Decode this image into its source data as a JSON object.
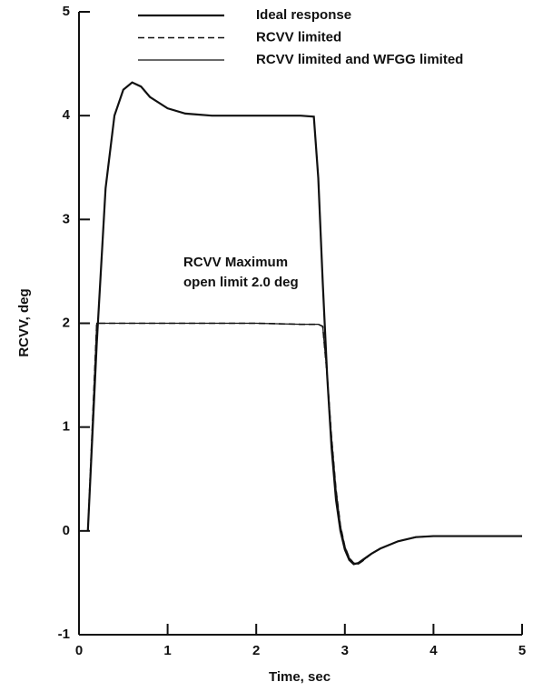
{
  "chart_data": {
    "type": "line",
    "xlabel": "Time, sec",
    "ylabel": "RCVV, deg",
    "annotation": [
      "RCVV Maximum",
      "open limit 2.0 deg"
    ],
    "x": [
      0.1,
      0.2,
      0.3,
      0.4,
      0.5,
      0.6,
      0.7,
      0.8,
      1.0,
      1.2,
      1.5,
      2.0,
      2.5,
      2.65,
      2.7,
      2.75,
      2.8,
      2.85,
      2.9,
      2.95,
      3.0,
      3.05,
      3.1,
      3.15,
      3.2,
      3.3,
      3.4,
      3.6,
      3.8,
      4.0,
      4.5,
      5.0
    ],
    "series": [
      {
        "name": "Ideal response",
        "color": "#111111",
        "linestyle": "solid",
        "linewidth": 2.2,
        "values": [
          0,
          1.8,
          3.3,
          4.0,
          4.25,
          4.32,
          4.28,
          4.18,
          4.07,
          4.02,
          4.0,
          4.0,
          4.0,
          3.99,
          3.4,
          2.4,
          1.5,
          0.8,
          0.3,
          0.0,
          -0.18,
          -0.28,
          -0.32,
          -0.31,
          -0.28,
          -0.22,
          -0.17,
          -0.1,
          -0.06,
          -0.05,
          -0.05,
          -0.05
        ]
      },
      {
        "name": "RCVV limited",
        "color": "#111111",
        "linestyle": "dashed",
        "linewidth": 1.6,
        "values": [
          0,
          2.0,
          2.0,
          2.0,
          2.0,
          2.0,
          2.0,
          2.0,
          2.0,
          2.0,
          2.0,
          2.0,
          1.99,
          1.99,
          1.99,
          1.97,
          1.5,
          0.9,
          0.4,
          0.05,
          -0.15,
          -0.26,
          -0.31,
          -0.32,
          -0.29,
          -0.22,
          -0.17,
          -0.1,
          -0.06,
          -0.05,
          -0.05,
          -0.05
        ]
      },
      {
        "name": "RCVV limited and WFGG limited",
        "color": "#111111",
        "linestyle": "solid",
        "linewidth": 1.2,
        "values": [
          0,
          2.0,
          2.0,
          2.0,
          2.0,
          2.0,
          2.0,
          2.0,
          2.0,
          2.0,
          2.0,
          2.0,
          1.99,
          1.99,
          1.99,
          1.97,
          1.5,
          0.9,
          0.4,
          0.05,
          -0.15,
          -0.26,
          -0.31,
          -0.32,
          -0.29,
          -0.22,
          -0.17,
          -0.1,
          -0.06,
          -0.05,
          -0.05,
          -0.05
        ]
      }
    ],
    "xlim": [
      0,
      5
    ],
    "xticks": [
      0,
      1,
      2,
      3,
      4,
      5
    ],
    "ylim": [
      -1,
      5
    ],
    "yticks": [
      -1,
      0,
      1,
      2,
      3,
      4,
      5
    ],
    "legend": "top"
  }
}
